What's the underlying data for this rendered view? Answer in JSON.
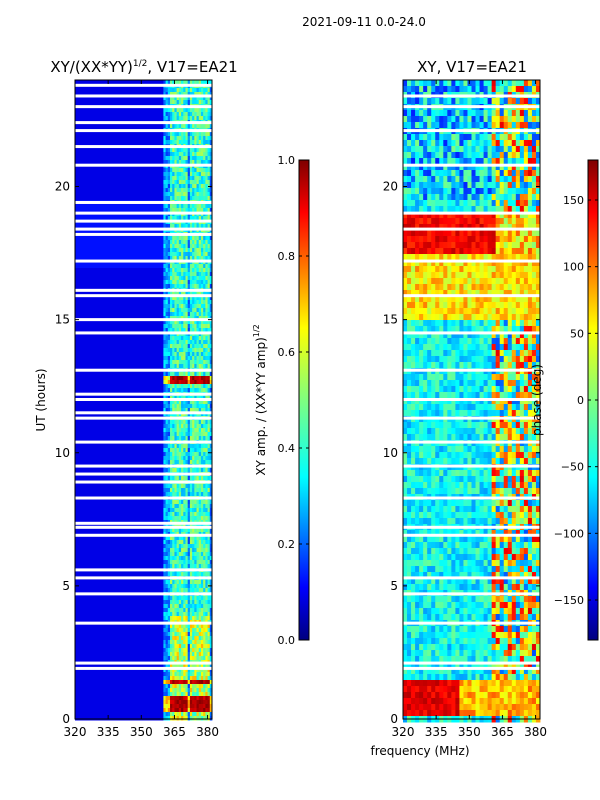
{
  "chart_data": [
    {
      "type": "heatmap",
      "title": "XY/(XX*YY)",
      "title_sup": "1/2",
      "title_tail": ", V17=EA21",
      "xlabel": "",
      "ylabel": "UT (hours)",
      "xlim": [
        320,
        382
      ],
      "ylim": [
        0,
        24
      ],
      "xticks": [
        320,
        335,
        350,
        365,
        380
      ],
      "yticks": [
        0,
        5,
        10,
        15,
        20
      ],
      "colorbar": {
        "label": "XY amp. / (XX*YY amp)",
        "label_sup": "1/2",
        "range": [
          0.0,
          1.0
        ],
        "ticks": [
          "0.0",
          "0.2",
          "0.4",
          "0.6",
          "0.8",
          "1.0"
        ],
        "tick_values": [
          0,
          0.2,
          0.4,
          0.6,
          0.8,
          1.0
        ]
      },
      "flagged_hours": [
        1.9,
        2.1,
        3.6,
        4.7,
        5.3,
        5.6,
        6.9,
        7.2,
        7.35,
        8.3,
        8.9,
        9.2,
        9.5,
        10.4,
        11.3,
        11.5,
        12.0,
        12.2,
        13.1,
        14.5,
        15.0,
        15.9,
        16.1,
        17.2,
        18.2,
        18.4,
        18.7,
        19.0,
        19.4,
        20.8,
        21.5,
        22.1,
        22.4,
        23.0,
        23.4,
        23.8
      ],
      "bright_channels_MHz": [
        364.5,
        366.5,
        369.5,
        373.5,
        376.5,
        379.5
      ],
      "hot_bands_hours": [
        [
          0.3,
          0.9
        ],
        [
          1.4,
          1.6
        ],
        [
          12.7,
          12.9
        ]
      ]
    },
    {
      "type": "heatmap",
      "title": "XY, V17=EA21",
      "xlabel": "",
      "ylabel": "",
      "xlim": [
        320,
        382
      ],
      "ylim": [
        0,
        24
      ],
      "xticks": [
        320,
        335,
        350,
        365,
        380
      ],
      "yticks": [
        0,
        5,
        10,
        15,
        20
      ],
      "colorbar": {
        "label": "phase (deg)",
        "range": [
          -180,
          180
        ],
        "ticks": [
          "−150",
          "−100",
          "−50",
          "0",
          "50",
          "100",
          "150"
        ],
        "tick_values": [
          -150,
          -100,
          -50,
          0,
          50,
          100,
          150
        ]
      },
      "flagged_hours": [
        1.9,
        2.1,
        3.6,
        4.7,
        5.3,
        6.9,
        7.2,
        8.3,
        9.5,
        10.4,
        11.3,
        12.0,
        13.1,
        14.5,
        15.9,
        17.2,
        18.4,
        19.0,
        20.8,
        22.1,
        23.0,
        23.4
      ]
    }
  ],
  "suptitle": "2021-09-11 0.0-24.0",
  "shared_xlabel": "frequency (MHz)",
  "colors": {
    "jet": [
      "#00007f",
      "#0000ff",
      "#007fff",
      "#00ffff",
      "#7fff7f",
      "#ffff00",
      "#ff7f00",
      "#ff0000",
      "#7f0000"
    ]
  }
}
